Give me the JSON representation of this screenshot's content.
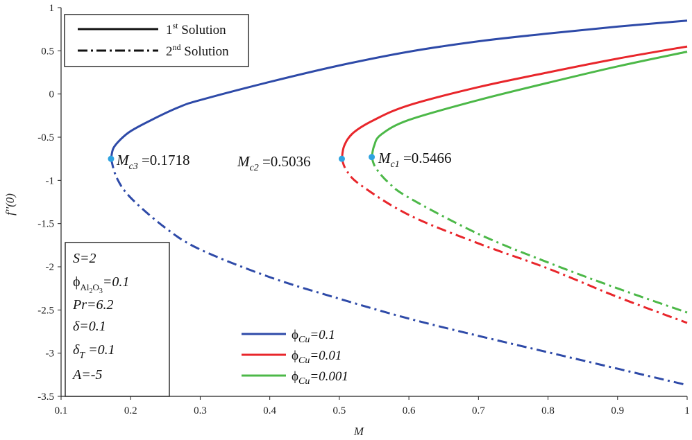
{
  "chart_data": {
    "type": "line",
    "xlabel": "M",
    "ylabel": "f''(0)",
    "xlim": [
      0.1,
      1.0
    ],
    "ylim": [
      -3.5,
      1.0
    ],
    "xticks": [
      "0.1",
      "0.2",
      "0.3",
      "0.4",
      "0.5",
      "0.6",
      "0.7",
      "0.8",
      "0.9",
      "1"
    ],
    "yticks": [
      "1",
      "0.5",
      "0",
      "-0.5",
      "-1",
      "-1.5",
      "-2",
      "-2.5",
      "-3",
      "-3.5"
    ],
    "solution_legend": [
      {
        "sup": "st",
        "label_prefix": "1",
        "label_suffix": " Solution",
        "style": "solid"
      },
      {
        "sup": "nd",
        "label_prefix": "2",
        "label_suffix": " Solution",
        "style": "dashdot"
      }
    ],
    "series": [
      {
        "name": "ϕCu=0.1",
        "phi_label": "ϕ",
        "sub_label": "Cu",
        "value_label": "=0.1",
        "color": "#2e4aa8",
        "critical": {
          "label_main": "M",
          "label_sub": "c3",
          "value_text": " =0.1718",
          "M": 0.1718,
          "f": -0.75
        },
        "first": [
          [
            0.1718,
            -0.75
          ],
          [
            0.175,
            -0.63
          ],
          [
            0.185,
            -0.53
          ],
          [
            0.2,
            -0.43
          ],
          [
            0.23,
            -0.3
          ],
          [
            0.27,
            -0.15
          ],
          [
            0.3,
            -0.07
          ],
          [
            0.4,
            0.14
          ],
          [
            0.5,
            0.33
          ],
          [
            0.6,
            0.49
          ],
          [
            0.7,
            0.61
          ],
          [
            0.8,
            0.7
          ],
          [
            0.9,
            0.78
          ],
          [
            1.0,
            0.85
          ]
        ],
        "second": [
          [
            0.1718,
            -0.75
          ],
          [
            0.18,
            -0.97
          ],
          [
            0.2,
            -1.2
          ],
          [
            0.25,
            -1.55
          ],
          [
            0.3,
            -1.8
          ],
          [
            0.4,
            -2.12
          ],
          [
            0.5,
            -2.37
          ],
          [
            0.6,
            -2.6
          ],
          [
            0.7,
            -2.8
          ],
          [
            0.8,
            -2.99
          ],
          [
            0.9,
            -3.18
          ],
          [
            1.0,
            -3.37
          ]
        ]
      },
      {
        "name": "ϕCu=0.01",
        "phi_label": "ϕ",
        "sub_label": "Cu",
        "value_label": "=0.01",
        "color": "#e8262b",
        "critical": {
          "label_main": "M",
          "label_sub": "c2",
          "value_text": " =0.5036",
          "M": 0.5036,
          "f": -0.75
        },
        "first": [
          [
            0.5036,
            -0.75
          ],
          [
            0.507,
            -0.6
          ],
          [
            0.52,
            -0.45
          ],
          [
            0.55,
            -0.3
          ],
          [
            0.6,
            -0.13
          ],
          [
            0.7,
            0.08
          ],
          [
            0.8,
            0.25
          ],
          [
            0.9,
            0.41
          ],
          [
            1.0,
            0.55
          ]
        ],
        "second": [
          [
            0.5036,
            -0.75
          ],
          [
            0.51,
            -0.88
          ],
          [
            0.53,
            -1.05
          ],
          [
            0.6,
            -1.4
          ],
          [
            0.7,
            -1.73
          ],
          [
            0.8,
            -2.02
          ],
          [
            0.9,
            -2.35
          ],
          [
            1.0,
            -2.65
          ]
        ]
      },
      {
        "name": "ϕCu=0.001",
        "phi_label": "ϕ",
        "sub_label": "Cu",
        "value_label": "=0.001",
        "color": "#4cb848",
        "critical": {
          "label_main": "M",
          "label_sub": "c1",
          "value_text": " =0.5466",
          "M": 0.5466,
          "f": -0.73
        },
        "first": [
          [
            0.5466,
            -0.73
          ],
          [
            0.55,
            -0.6
          ],
          [
            0.56,
            -0.47
          ],
          [
            0.6,
            -0.3
          ],
          [
            0.7,
            -0.07
          ],
          [
            0.8,
            0.13
          ],
          [
            0.9,
            0.32
          ],
          [
            1.0,
            0.49
          ]
        ],
        "second": [
          [
            0.5466,
            -0.73
          ],
          [
            0.552,
            -0.85
          ],
          [
            0.57,
            -1.02
          ],
          [
            0.6,
            -1.2
          ],
          [
            0.7,
            -1.62
          ],
          [
            0.8,
            -1.95
          ],
          [
            0.9,
            -2.25
          ],
          [
            1.0,
            -2.53
          ]
        ]
      }
    ],
    "parameters": {
      "S": "S=2",
      "phi_sym": "ϕ",
      "phi_sub": "Al",
      "phi_sub2": "2",
      "phi_sub3": "O",
      "phi_sub4": "3",
      "phi_val": "=0.1",
      "Pr": "Pr=6.2",
      "delta": "δ=0.1",
      "deltaT_main": "δ",
      "deltaT_sub": "T",
      "deltaT_val": " =0.1",
      "A": "A=-5"
    },
    "point_color": "#2ea3e0"
  }
}
